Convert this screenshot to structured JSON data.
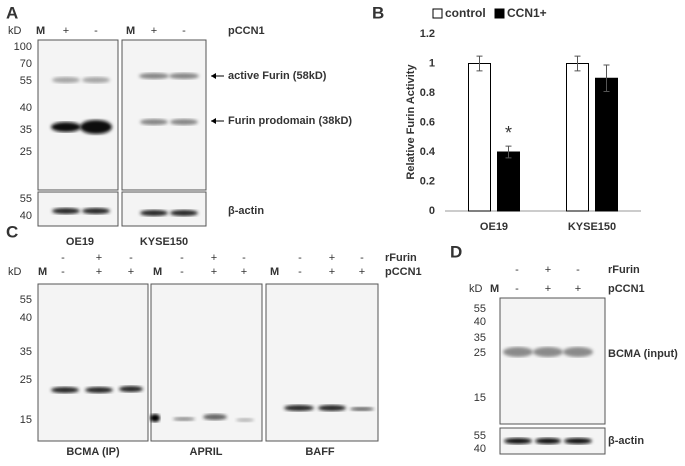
{
  "figure": {
    "a": {
      "label": "A",
      "unit": "kD",
      "markers": [
        "M",
        "M"
      ],
      "lanes": [
        [
          "+",
          "-"
        ],
        [
          "+",
          "-"
        ]
      ],
      "row": "pCCN1",
      "ladder": [
        "100",
        "70",
        "55",
        "40",
        "35",
        "25"
      ],
      "ladder_actin": [
        "55",
        "40"
      ],
      "bands": [
        "active Furin (58kD)",
        "Furin prodomain (38kD)"
      ],
      "loading": "β-actin",
      "cells": [
        "OE19",
        "KYSE150"
      ]
    },
    "c": {
      "label": "C",
      "unit": "kD",
      "markers": [
        "M",
        "M",
        "M"
      ],
      "rows": [
        "rFurin",
        "pCCN1"
      ],
      "lanes_rfurin": [
        [
          "-",
          "+",
          "-"
        ],
        [
          "-",
          "+",
          "-"
        ],
        [
          "-",
          "+",
          "-"
        ]
      ],
      "lanes_pccn1": [
        [
          "-",
          "+",
          "+"
        ],
        [
          "-",
          "+",
          "+"
        ],
        [
          "-",
          "+",
          "+"
        ]
      ],
      "ladder": [
        "55",
        "40",
        "35",
        "25",
        "15"
      ],
      "blots": [
        "BCMA (IP)",
        "APRIL",
        "BAFF"
      ]
    },
    "d": {
      "label": "D",
      "unit": "kD",
      "marker": "M",
      "rows": [
        "rFurin",
        "pCCN1"
      ],
      "lanes_rfurin": [
        "-",
        "+",
        "-"
      ],
      "lanes_pccn1": [
        "-",
        "+",
        "+"
      ],
      "ladder": [
        "55",
        "40",
        "35",
        "25",
        "15"
      ],
      "ladder_actin": [
        "55",
        "40"
      ],
      "band": "BCMA (input)",
      "loading": "β-actin"
    }
  },
  "chart_data": {
    "type": "bar",
    "panel": "B",
    "ylabel": "Relative Furin Activity",
    "categories": [
      "OE19",
      "KYSE150"
    ],
    "series": [
      {
        "name": "control",
        "color": "#ffffff",
        "values": [
          1,
          1
        ],
        "errors": [
          0.05,
          0.05
        ]
      },
      {
        "name": "CCN1+",
        "color": "#000000",
        "values": [
          0.4,
          0.9
        ],
        "errors": [
          0.04,
          0.09
        ]
      }
    ],
    "annotation": "*",
    "ylim": [
      0,
      1.2
    ],
    "yticks": [
      0,
      0.2,
      0.4,
      0.6,
      0.8,
      1,
      1.2
    ],
    "grid": false
  }
}
